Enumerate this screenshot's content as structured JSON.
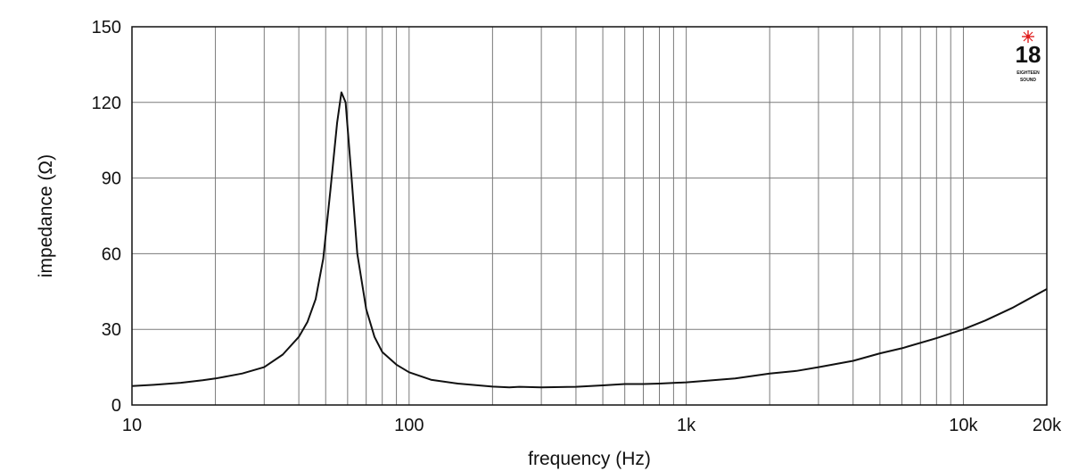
{
  "chart_data": {
    "type": "line",
    "title": "",
    "xlabel": "frequency (Hz)",
    "ylabel": "impedance (Ω)",
    "x_scale": "log",
    "xlim": [
      10,
      20000
    ],
    "ylim": [
      0,
      150
    ],
    "x_ticks": [
      {
        "value": 10,
        "label": "10"
      },
      {
        "value": 100,
        "label": "100"
      },
      {
        "value": 1000,
        "label": "1k"
      },
      {
        "value": 10000,
        "label": "10k"
      },
      {
        "value": 20000,
        "label": "20k"
      }
    ],
    "y_ticks": [
      {
        "value": 0,
        "label": "0"
      },
      {
        "value": 30,
        "label": "30"
      },
      {
        "value": 60,
        "label": "60"
      },
      {
        "value": 90,
        "label": "90"
      },
      {
        "value": 120,
        "label": "120"
      },
      {
        "value": 150,
        "label": "150"
      }
    ],
    "grid": true,
    "line_color": "#111111",
    "series": [
      {
        "x": [
          10,
          12,
          15,
          18,
          20,
          25,
          30,
          35,
          40,
          43,
          46,
          49,
          52,
          55,
          57,
          59,
          62,
          65,
          70,
          75,
          80,
          90,
          100,
          120,
          150,
          200,
          230,
          250,
          300,
          400,
          500,
          600,
          700,
          800,
          1000,
          1500,
          2000,
          2500,
          3000,
          4000,
          5000,
          6000,
          8000,
          10000,
          12000,
          15000,
          20000
        ],
        "y": [
          7.5,
          8.0,
          8.8,
          9.8,
          10.5,
          12.5,
          15,
          20,
          27,
          33,
          42,
          58,
          85,
          112,
          124,
          120,
          90,
          60,
          38,
          27,
          21,
          16,
          13,
          10,
          8.5,
          7.3,
          7.0,
          7.2,
          7.0,
          7.2,
          7.8,
          8.3,
          8.3,
          8.5,
          9.0,
          10.5,
          12.5,
          13.5,
          15,
          17.5,
          20.5,
          22.5,
          26.5,
          30,
          33.5,
          38.5,
          46
        ]
      }
    ]
  },
  "logo": {
    "number": "18",
    "sub_top": "EIGHTEEN",
    "sub_bottom": "SOUND",
    "accent_color": "#e02020"
  }
}
